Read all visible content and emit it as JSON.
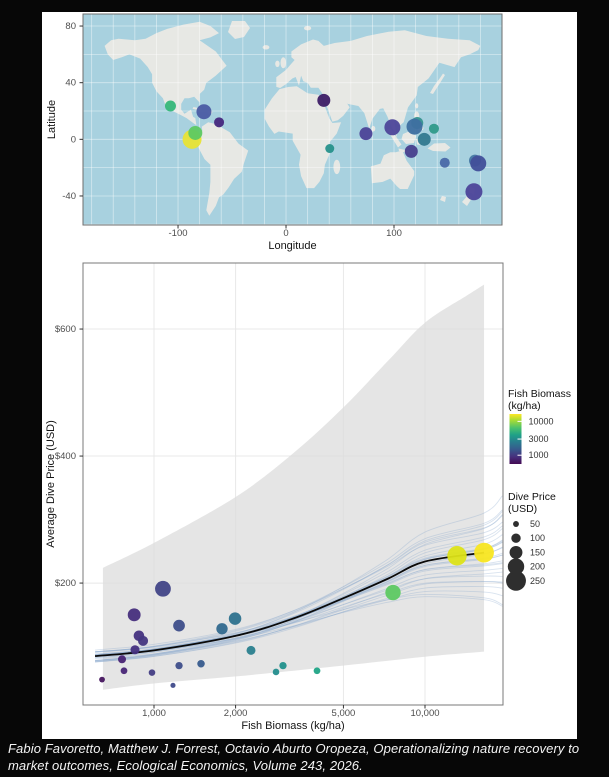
{
  "page": {
    "bg": "#070707",
    "figure_bg": "#ffffff"
  },
  "caption": "Fabio Favoretto, Matthew J. Forrest, Octavio Aburto Oropeza, Operationalizing nature recovery to market outcomes, Ecological Economics, Volume 243, 2026.",
  "chart_data": [
    {
      "type": "scatter",
      "variant": "world-map",
      "xlabel": "Longitude",
      "ylabel": "Latitude",
      "x_ticks": [
        -100,
        0,
        100
      ],
      "y_ticks": [
        80,
        40,
        0,
        -40
      ],
      "xlim": [
        -188,
        200
      ],
      "ylim": [
        -60.5,
        88.5
      ],
      "grid_step_deg": 20,
      "ocean_color": "#a8d1df",
      "land_color": "#e7e8e4",
      "points": [
        {
          "site": "mexico-pacific",
          "lon": -107,
          "lat": 23.5,
          "color": "#35b779",
          "r": 5.5
        },
        {
          "site": "caribbean",
          "lon": -76,
          "lat": 19.5,
          "color": "#4a5ba3",
          "r": 7.5
        },
        {
          "site": "southern-caribbean",
          "lon": -62,
          "lat": 12,
          "color": "#45277d",
          "r": 5
        },
        {
          "site": "galapagos",
          "lon": -87,
          "lat": 0,
          "color": "#e8e335",
          "r": 9.5
        },
        {
          "site": "malpelo-cocos",
          "lon": -84,
          "lat": 4.5,
          "color": "#5ec962",
          "r": 7
        },
        {
          "site": "red-sea",
          "lon": 35,
          "lat": 27.5,
          "color": "#3d1e66",
          "r": 6.5
        },
        {
          "site": "east-africa",
          "lon": 40.5,
          "lat": -6.5,
          "color": "#26918b",
          "r": 4.5
        },
        {
          "site": "maldives",
          "lon": 74,
          "lat": 4,
          "color": "#4c4397",
          "r": 6.5
        },
        {
          "site": "thailand",
          "lon": 98.5,
          "lat": 8.5,
          "color": "#4d4699",
          "r": 8
        },
        {
          "site": "philippines-north",
          "lon": 121.5,
          "lat": 11.5,
          "color": "#35928f",
          "r": 6
        },
        {
          "site": "philippines",
          "lon": 119,
          "lat": 9,
          "color": "#3e6fa0",
          "r": 8
        },
        {
          "site": "micronesia",
          "lon": 137,
          "lat": 7.5,
          "color": "#2f9a8a",
          "r": 5
        },
        {
          "site": "raja-ampat",
          "lon": 128,
          "lat": 0,
          "color": "#31798f",
          "r": 6.5
        },
        {
          "site": "komodo",
          "lon": 116,
          "lat": -8.5,
          "color": "#473f8d",
          "r": 6.5
        },
        {
          "site": "great-barrier-reef",
          "lon": 147,
          "lat": -16.5,
          "color": "#4a69a8",
          "r": 5
        },
        {
          "site": "fiji-west",
          "lon": 175,
          "lat": -15,
          "color": "#4577a3",
          "r": 6
        },
        {
          "site": "fiji",
          "lon": 178,
          "lat": -17,
          "color": "#414f99",
          "r": 8
        },
        {
          "site": "new-zealand",
          "lon": 174,
          "lat": -37,
          "color": "#4c4499",
          "r": 8.5
        }
      ]
    },
    {
      "type": "scatter",
      "xlabel": "Fish Biomass (kg/ha)",
      "ylabel": "Average Dive Price (USD)",
      "x_scale": "log10",
      "x_ticks": [
        1000,
        2000,
        5000,
        10000
      ],
      "x_tick_labels": [
        "1,000",
        "2,000",
        "5,000",
        "10,000"
      ],
      "y_ticks": [
        200,
        400,
        600
      ],
      "y_tick_labels": [
        "$200",
        "$400",
        "$600"
      ],
      "xlim": [
        547,
        19400
      ],
      "ylim": [
        8,
        704
      ],
      "points": [
        {
          "biomass": 643,
          "price": 48,
          "color": "#46165f"
        },
        {
          "biomass": 762,
          "price": 80,
          "color": "#482373"
        },
        {
          "biomass": 775,
          "price": 62,
          "color": "#482576"
        },
        {
          "biomass": 845,
          "price": 150,
          "color": "#472f7d"
        },
        {
          "biomass": 851,
          "price": 95,
          "color": "#463080"
        },
        {
          "biomass": 880,
          "price": 117,
          "color": "#45327f"
        },
        {
          "biomass": 911,
          "price": 109,
          "color": "#453781"
        },
        {
          "biomass": 983,
          "price": 59,
          "color": "#433d84"
        },
        {
          "biomass": 1079,
          "price": 191,
          "color": "#414487"
        },
        {
          "biomass": 1175,
          "price": 39,
          "color": "#3f4a8a"
        },
        {
          "biomass": 1237,
          "price": 133,
          "color": "#3e4e8a"
        },
        {
          "biomass": 1237,
          "price": 70,
          "color": "#3e4e8a"
        },
        {
          "biomass": 1491,
          "price": 73,
          "color": "#375b8d"
        },
        {
          "biomass": 1782,
          "price": 128,
          "color": "#32698e"
        },
        {
          "biomass": 1991,
          "price": 144,
          "color": "#2e728e"
        },
        {
          "biomass": 2280,
          "price": 94,
          "color": "#2a7f8e"
        },
        {
          "biomass": 2820,
          "price": 60,
          "color": "#238d8d"
        },
        {
          "biomass": 2992,
          "price": 70,
          "color": "#21918c"
        },
        {
          "biomass": 3995,
          "price": 62,
          "color": "#20a486"
        },
        {
          "biomass": 7620,
          "price": 185,
          "color": "#5ec962"
        },
        {
          "biomass": 13125,
          "price": 243,
          "color": "#dde318"
        },
        {
          "biomass": 16513,
          "price": 248,
          "color": "#f8e621"
        }
      ],
      "trend": {
        "color": "#0a0a0a",
        "points": [
          [
            606,
            85
          ],
          [
            1000,
            94
          ],
          [
            2007,
            117
          ],
          [
            3256,
            144
          ],
          [
            4984,
            176
          ],
          [
            7305,
            207
          ],
          [
            9998,
            234
          ],
          [
            16513,
            248
          ]
        ]
      },
      "band": {
        "color": "#dcdcdc",
        "opacity": 0.75,
        "upper": [
          [
            648,
            224
          ],
          [
            1008,
            264
          ],
          [
            2007,
            336
          ],
          [
            3256,
            404
          ],
          [
            4984,
            476
          ],
          [
            7305,
            550
          ],
          [
            9998,
            610
          ],
          [
            14300,
            653
          ],
          [
            16513,
            670
          ]
        ],
        "lower": [
          [
            648,
            32
          ],
          [
            1008,
            42
          ],
          [
            2007,
            53
          ],
          [
            4984,
            70
          ],
          [
            9998,
            84
          ],
          [
            16513,
            92
          ]
        ]
      },
      "spaghetti": {
        "count": 30,
        "seed": 11,
        "color": "#89a8cc",
        "opacity": 0.32
      },
      "legend_color": {
        "title_lines": [
          "Fish Biomass",
          "(kg/ha)"
        ],
        "ticks": [
          10000,
          3000,
          1000
        ],
        "tick_labels": [
          "10000",
          "3000",
          "1000"
        ],
        "domain": [
          550,
          16500
        ]
      },
      "legend_size": {
        "title_lines": [
          "Dive Price",
          "(USD)"
        ],
        "values": [
          50,
          100,
          150,
          200,
          250
        ],
        "dot_color": "#2e2e2e"
      }
    }
  ]
}
